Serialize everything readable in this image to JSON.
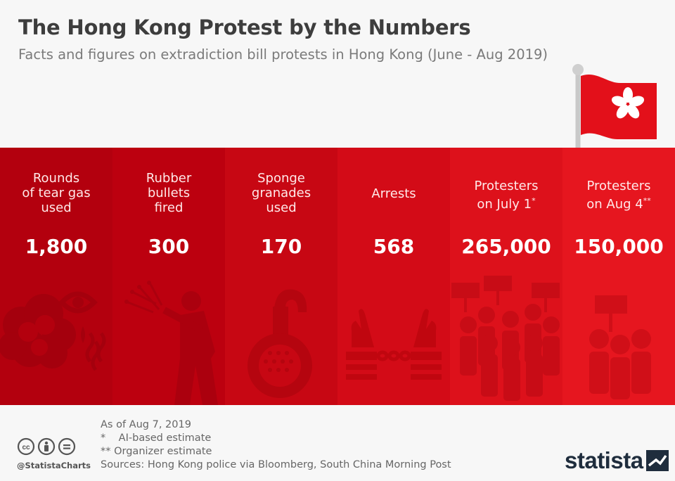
{
  "header": {
    "title": "The Hong Kong Protest by the Numbers",
    "subtitle": "Facts and figures on extradiction bill protests in Hong Kong (June - Aug 2019)"
  },
  "colors": {
    "panels": [
      "#b3000e",
      "#bc000f",
      "#c70713",
      "#d30b17",
      "#dd111b",
      "#e6161f"
    ]
  },
  "stats": [
    {
      "label": "Rounds\nof tear gas\nused",
      "value": "1,800",
      "icon": "tear-gas-icon"
    },
    {
      "label": "Rubber\nbullets\nfired",
      "value": "300",
      "icon": "rubber-bullet-shooter-icon"
    },
    {
      "label": "Sponge\ngranades\nused",
      "value": "170",
      "icon": "sponge-grenade-icon"
    },
    {
      "label": "Arrests",
      "value": "568",
      "icon": "handcuffs-icon"
    },
    {
      "label": "Protesters\non July 1",
      "mark": "*",
      "value": "265,000",
      "icon": "crowd-icon"
    },
    {
      "label": "Protesters\non Aug 4",
      "mark": "**",
      "value": "150,000",
      "icon": "small-crowd-icon"
    }
  ],
  "footer": {
    "notes": [
      "As of Aug 7, 2019",
      "*    AI-based estimate",
      "** Organizer estimate",
      "Sources: Hong Kong police via Bloomberg, South China Morning Post"
    ],
    "handle": "@StatistaCharts",
    "brand": "statista"
  }
}
